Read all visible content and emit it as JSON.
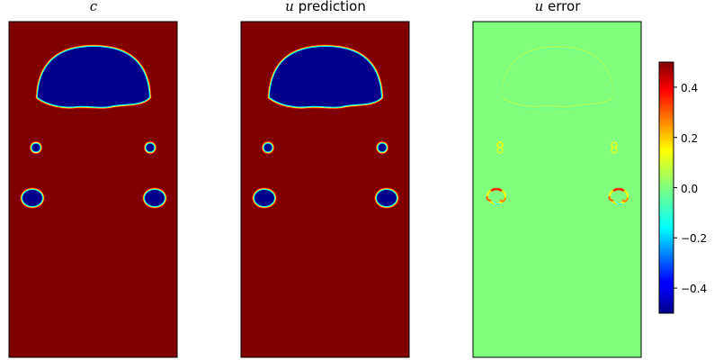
{
  "chart_data": [
    {
      "type": "heatmap",
      "title_var": "c",
      "title_rest": "",
      "field": "c",
      "cmap": "jet",
      "vlim": [
        -0.5,
        0.5
      ],
      "axes": "off"
    },
    {
      "type": "heatmap",
      "title_var": "u",
      "title_rest": " prediction",
      "field": "u_prediction",
      "cmap": "jet",
      "vlim": [
        -0.5,
        0.5
      ],
      "axes": "off"
    },
    {
      "type": "heatmap",
      "title_var": "u",
      "title_rest": " error",
      "field": "u_error",
      "cmap": "jet",
      "vlim": [
        -0.5,
        0.5
      ],
      "axes": "off"
    }
  ],
  "colorbar": {
    "cmap": "jet",
    "vmin": -0.5,
    "vmax": 0.5,
    "ticks": [
      "0.4",
      "0.2",
      "0.0",
      "−0.2",
      "−0.4"
    ],
    "tick_values": [
      0.4,
      0.2,
      0.0,
      -0.2,
      -0.4
    ]
  },
  "colors": {
    "jet_max": "#800000",
    "jet_min": "#00008b",
    "jet_zero": "#80ff7f",
    "outline_1": "#00ffff",
    "outline_2": "#ffff00",
    "outline_3": "#ff0000"
  }
}
